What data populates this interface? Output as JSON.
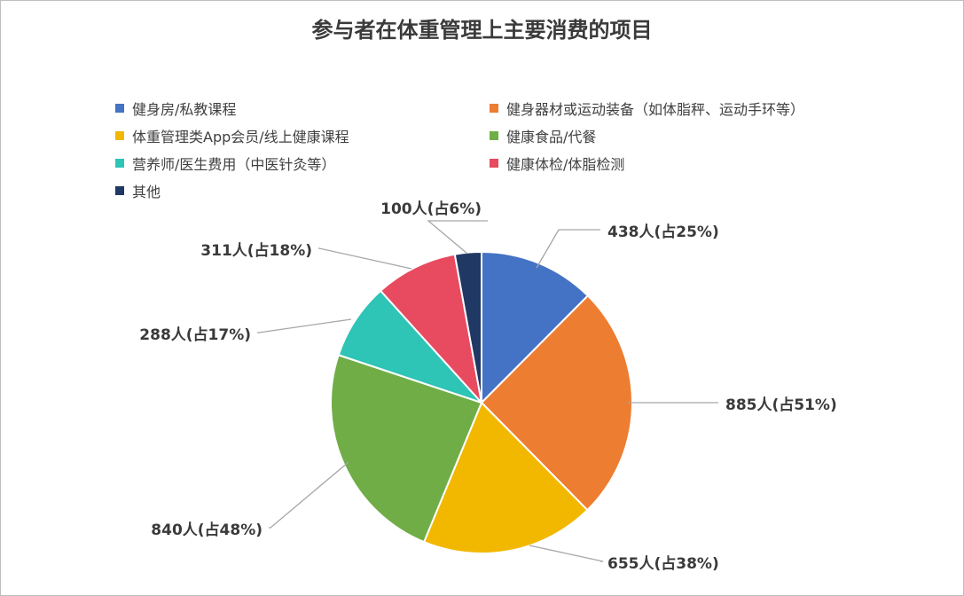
{
  "chart_data": {
    "type": "pie",
    "title": "参与者在体重管理上主要消费的项目",
    "legend_position": "top",
    "slices": [
      {
        "name": "健身房/私教课程",
        "count": 438,
        "label": "438人(占25%)",
        "share": 0.1335,
        "color": "#4472C4"
      },
      {
        "name": "健身器材或运动装备（如体脂秤、运动手环等）",
        "count": 885,
        "label": "885人(占51%)",
        "share": 0.2697,
        "color": "#ED7D31"
      },
      {
        "name": "体重管理类App会员/线上健康课程",
        "count": 655,
        "label": "655人(占38%)",
        "share": 0.1996,
        "color": "#F2B800"
      },
      {
        "name": "健康食品/代餐",
        "count": 840,
        "label": "840人(占48%)",
        "share": 0.256,
        "color": "#70AD47"
      },
      {
        "name": "营养师/医生费用（中医针灸等）",
        "count": 288,
        "label": "288人(占17%)",
        "share": 0.0878,
        "color": "#2EC4B6"
      },
      {
        "name": "健康体检/体脂检测",
        "count": 311,
        "label": "311人(占18%)",
        "share": 0.0948,
        "color": "#E84A5F"
      },
      {
        "name": "其他",
        "count": 100,
        "label": "100人(占6%)",
        "share": 0.0305,
        "color": "#203864"
      }
    ]
  }
}
